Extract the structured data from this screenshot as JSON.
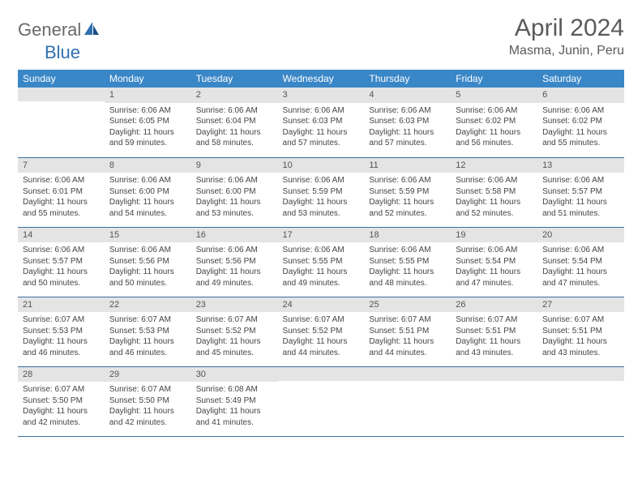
{
  "logo": {
    "part1": "General",
    "part2": "Blue"
  },
  "title": "April 2024",
  "location": "Masma, Junin, Peru",
  "colors": {
    "header_bg": "#3a87c7",
    "header_fg": "#ffffff",
    "daynum_bg": "#e4e4e4",
    "row_border": "#3a6fa0",
    "text": "#444444",
    "logo_gray": "#6a6a6a",
    "logo_blue": "#2f6fb0"
  },
  "weekdays": [
    "Sunday",
    "Monday",
    "Tuesday",
    "Wednesday",
    "Thursday",
    "Friday",
    "Saturday"
  ],
  "weeks": [
    [
      {
        "n": "",
        "text": ""
      },
      {
        "n": "1",
        "text": "Sunrise: 6:06 AM\nSunset: 6:05 PM\nDaylight: 11 hours and 59 minutes."
      },
      {
        "n": "2",
        "text": "Sunrise: 6:06 AM\nSunset: 6:04 PM\nDaylight: 11 hours and 58 minutes."
      },
      {
        "n": "3",
        "text": "Sunrise: 6:06 AM\nSunset: 6:03 PM\nDaylight: 11 hours and 57 minutes."
      },
      {
        "n": "4",
        "text": "Sunrise: 6:06 AM\nSunset: 6:03 PM\nDaylight: 11 hours and 57 minutes."
      },
      {
        "n": "5",
        "text": "Sunrise: 6:06 AM\nSunset: 6:02 PM\nDaylight: 11 hours and 56 minutes."
      },
      {
        "n": "6",
        "text": "Sunrise: 6:06 AM\nSunset: 6:02 PM\nDaylight: 11 hours and 55 minutes."
      }
    ],
    [
      {
        "n": "7",
        "text": "Sunrise: 6:06 AM\nSunset: 6:01 PM\nDaylight: 11 hours and 55 minutes."
      },
      {
        "n": "8",
        "text": "Sunrise: 6:06 AM\nSunset: 6:00 PM\nDaylight: 11 hours and 54 minutes."
      },
      {
        "n": "9",
        "text": "Sunrise: 6:06 AM\nSunset: 6:00 PM\nDaylight: 11 hours and 53 minutes."
      },
      {
        "n": "10",
        "text": "Sunrise: 6:06 AM\nSunset: 5:59 PM\nDaylight: 11 hours and 53 minutes."
      },
      {
        "n": "11",
        "text": "Sunrise: 6:06 AM\nSunset: 5:59 PM\nDaylight: 11 hours and 52 minutes."
      },
      {
        "n": "12",
        "text": "Sunrise: 6:06 AM\nSunset: 5:58 PM\nDaylight: 11 hours and 52 minutes."
      },
      {
        "n": "13",
        "text": "Sunrise: 6:06 AM\nSunset: 5:57 PM\nDaylight: 11 hours and 51 minutes."
      }
    ],
    [
      {
        "n": "14",
        "text": "Sunrise: 6:06 AM\nSunset: 5:57 PM\nDaylight: 11 hours and 50 minutes."
      },
      {
        "n": "15",
        "text": "Sunrise: 6:06 AM\nSunset: 5:56 PM\nDaylight: 11 hours and 50 minutes."
      },
      {
        "n": "16",
        "text": "Sunrise: 6:06 AM\nSunset: 5:56 PM\nDaylight: 11 hours and 49 minutes."
      },
      {
        "n": "17",
        "text": "Sunrise: 6:06 AM\nSunset: 5:55 PM\nDaylight: 11 hours and 49 minutes."
      },
      {
        "n": "18",
        "text": "Sunrise: 6:06 AM\nSunset: 5:55 PM\nDaylight: 11 hours and 48 minutes."
      },
      {
        "n": "19",
        "text": "Sunrise: 6:06 AM\nSunset: 5:54 PM\nDaylight: 11 hours and 47 minutes."
      },
      {
        "n": "20",
        "text": "Sunrise: 6:06 AM\nSunset: 5:54 PM\nDaylight: 11 hours and 47 minutes."
      }
    ],
    [
      {
        "n": "21",
        "text": "Sunrise: 6:07 AM\nSunset: 5:53 PM\nDaylight: 11 hours and 46 minutes."
      },
      {
        "n": "22",
        "text": "Sunrise: 6:07 AM\nSunset: 5:53 PM\nDaylight: 11 hours and 46 minutes."
      },
      {
        "n": "23",
        "text": "Sunrise: 6:07 AM\nSunset: 5:52 PM\nDaylight: 11 hours and 45 minutes."
      },
      {
        "n": "24",
        "text": "Sunrise: 6:07 AM\nSunset: 5:52 PM\nDaylight: 11 hours and 44 minutes."
      },
      {
        "n": "25",
        "text": "Sunrise: 6:07 AM\nSunset: 5:51 PM\nDaylight: 11 hours and 44 minutes."
      },
      {
        "n": "26",
        "text": "Sunrise: 6:07 AM\nSunset: 5:51 PM\nDaylight: 11 hours and 43 minutes."
      },
      {
        "n": "27",
        "text": "Sunrise: 6:07 AM\nSunset: 5:51 PM\nDaylight: 11 hours and 43 minutes."
      }
    ],
    [
      {
        "n": "28",
        "text": "Sunrise: 6:07 AM\nSunset: 5:50 PM\nDaylight: 11 hours and 42 minutes."
      },
      {
        "n": "29",
        "text": "Sunrise: 6:07 AM\nSunset: 5:50 PM\nDaylight: 11 hours and 42 minutes."
      },
      {
        "n": "30",
        "text": "Sunrise: 6:08 AM\nSunset: 5:49 PM\nDaylight: 11 hours and 41 minutes."
      },
      {
        "n": "",
        "text": ""
      },
      {
        "n": "",
        "text": ""
      },
      {
        "n": "",
        "text": ""
      },
      {
        "n": "",
        "text": ""
      }
    ]
  ]
}
